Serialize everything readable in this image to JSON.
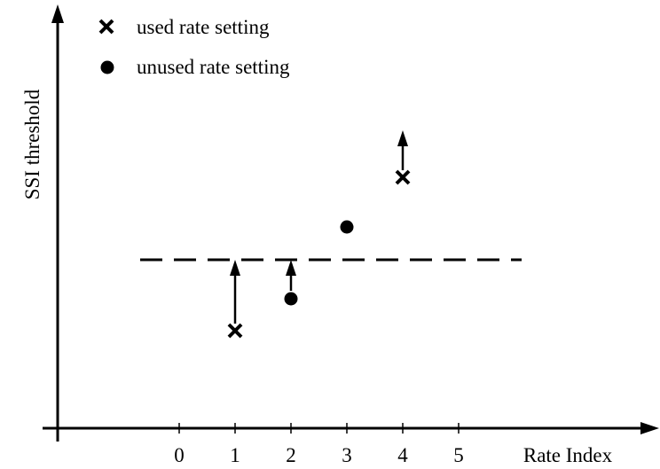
{
  "chart_data": {
    "type": "scatter",
    "x_axis": {
      "label": "Rate Index",
      "ticks": [
        "0",
        "1",
        "2",
        "3",
        "4",
        "5"
      ]
    },
    "y_axis": {
      "label": "SSI threshold",
      "ticks": []
    },
    "legend": {
      "placement": "top-left",
      "items": [
        {
          "marker": "x",
          "label": "used rate setting"
        },
        {
          "marker": "dot",
          "label": "unused rate setting"
        }
      ]
    },
    "threshold_line": {
      "style": "dashed"
    },
    "points": [
      {
        "rate_index": 1,
        "marker": "x",
        "arrow": "up-to-threshold"
      },
      {
        "rate_index": 2,
        "marker": "dot",
        "arrow": "up-to-threshold"
      },
      {
        "rate_index": 3,
        "marker": "dot",
        "arrow": "none"
      },
      {
        "rate_index": 4,
        "marker": "x",
        "arrow": "up"
      }
    ],
    "colors": {
      "ink": "#000000",
      "background": "#ffffff"
    }
  }
}
